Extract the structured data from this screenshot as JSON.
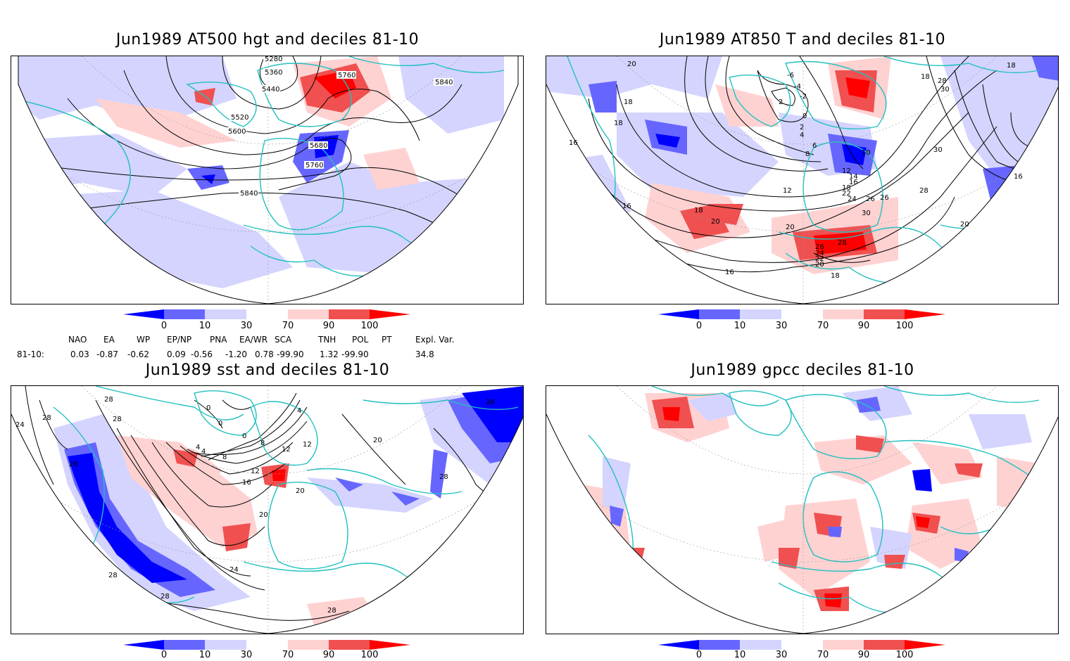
{
  "panels": [
    {
      "title": "Jun1989 AT500 hgt and deciles 81-10",
      "contour_labels": [
        "5280",
        "5360",
        "5440",
        "5520",
        "5600",
        "5680",
        "5760",
        "5840",
        "5760",
        "5840"
      ]
    },
    {
      "title": "Jun1989 AT850 T and deciles 81-10",
      "contour_labels": [
        "20",
        "18",
        "16",
        "18",
        "16",
        "-6",
        "-4",
        "-2",
        "0",
        "2",
        "2",
        "4",
        "6",
        "8",
        "10",
        "12",
        "14",
        "16",
        "18",
        "20",
        "22",
        "24",
        "26",
        "28",
        "30",
        "26",
        "24",
        "22",
        "20",
        "18",
        "16",
        "12",
        "18",
        "28",
        "30",
        "16",
        "20",
        "18",
        "20",
        "28",
        "30",
        "26",
        "18"
      ]
    },
    {
      "title": "Jun1989 sst and deciles 81-10",
      "contour_labels": [
        "28",
        "28",
        "24",
        "28",
        "28",
        "0",
        "0",
        "4",
        "0",
        "4",
        "8",
        "12",
        "12",
        "16",
        "20",
        "20",
        "20",
        "24",
        "28",
        "28",
        "28",
        "28",
        "28",
        "4",
        "8",
        "12"
      ]
    },
    {
      "title": "Jun1989 gpcc deciles 81-10",
      "contour_labels": []
    }
  ],
  "colorbar": {
    "labels": [
      "0",
      "10",
      "30",
      "70",
      "90",
      "100"
    ],
    "colors": [
      "#0000ff",
      "#6666ff",
      "#d4d4ff",
      "#ffffff",
      "#ffd2d2",
      "#f05050",
      "#ff0000"
    ]
  },
  "teleconnections": {
    "headers": [
      "NAO",
      "EA",
      "WP",
      "EP/NP",
      "PNA",
      "EA/WR",
      "SCA",
      "TNH",
      "POL",
      "PT",
      "Expl. Var."
    ],
    "row_label": "81-10:",
    "values": [
      "0.03",
      "-0.87",
      "-0.62",
      "0.09",
      "-0.56",
      "-1.20",
      "0.78",
      "-99.90",
      "1.32",
      "-99.90",
      "34.8"
    ]
  }
}
